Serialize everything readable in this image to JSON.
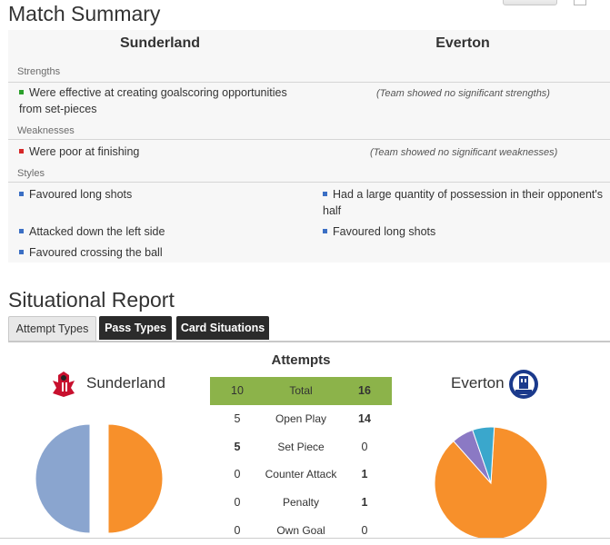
{
  "summary": {
    "title": "Match Summary",
    "home_team": "Sunderland",
    "away_team": "Everton",
    "strengths_label": "Strengths",
    "weaknesses_label": "Weaknesses",
    "styles_label": "Styles",
    "home_strengths": [
      "Were effective at creating goalscoring opportunities from set-pieces"
    ],
    "away_strengths_none": "(Team showed no significant strengths)",
    "home_weaknesses": [
      "Were poor at finishing"
    ],
    "away_weaknesses_none": "(Team showed no significant weaknesses)",
    "home_styles": [
      "Favoured long shots",
      "Attacked down the left side",
      "Favoured crossing the ball"
    ],
    "away_styles": [
      "Had a large quantity of possession in their opponent's half",
      "Favoured long shots"
    ]
  },
  "situational": {
    "title": "Situational Report",
    "tabs": [
      {
        "label": "Attempt Types",
        "active": true
      },
      {
        "label": "Pass Types",
        "active": false
      },
      {
        "label": "Card Situations",
        "active": false
      }
    ],
    "attempts_title": "Attempts",
    "home_team": "Sunderland",
    "away_team": "Everton",
    "rows": [
      {
        "label": "Total",
        "home": "10",
        "away": "16",
        "home_bold": false,
        "away_bold": true
      },
      {
        "label": "Open Play",
        "home": "5",
        "away": "14",
        "home_bold": false,
        "away_bold": true
      },
      {
        "label": "Set Piece",
        "home": "5",
        "away": "0",
        "home_bold": true,
        "away_bold": false
      },
      {
        "label": "Counter Attack",
        "home": "0",
        "away": "1",
        "home_bold": false,
        "away_bold": true
      },
      {
        "label": "Penalty",
        "home": "0",
        "away": "1",
        "home_bold": false,
        "away_bold": true
      },
      {
        "label": "Own Goal",
        "home": "0",
        "away": "0",
        "home_bold": false,
        "away_bold": false
      }
    ]
  },
  "colors": {
    "strength_bullet": "#2ca02c",
    "weakness_bullet": "#d62728",
    "style_bullet": "#3b6fc4",
    "total_row": "#8cb34a",
    "pie_home_a": "#8aa5cf",
    "pie_home_b": "#f7902b",
    "pie_away_main": "#f7902b",
    "pie_away_b": "#8b79c4",
    "pie_away_c": "#3aa7cc"
  },
  "chart_data": [
    {
      "type": "pie",
      "team": "Sunderland",
      "categories": [
        "Open Play",
        "Set Piece"
      ],
      "values": [
        5,
        5
      ]
    },
    {
      "type": "pie",
      "team": "Everton",
      "categories": [
        "Open Play",
        "Counter Attack",
        "Penalty"
      ],
      "values": [
        14,
        1,
        1
      ]
    }
  ]
}
